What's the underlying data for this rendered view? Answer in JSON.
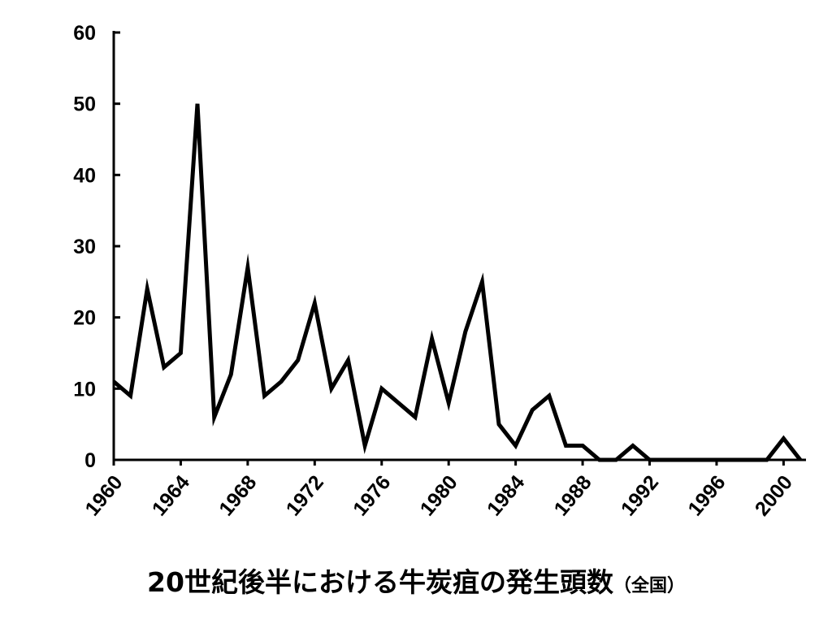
{
  "chart_data": {
    "type": "line",
    "title": "20世紀後半における牛炭疽の発生頭数",
    "subtitle": "（全国）",
    "xlabel": "",
    "ylabel": "",
    "ylim": [
      0,
      60
    ],
    "y_ticks": [
      0,
      10,
      20,
      30,
      40,
      50,
      60
    ],
    "x_ticks": [
      1960,
      1964,
      1968,
      1972,
      1976,
      1980,
      1984,
      1988,
      1992,
      1996,
      2000
    ],
    "xlim": [
      1960,
      2001
    ],
    "grid": false,
    "series": [
      {
        "color": "#000000",
        "x": [
          1960,
          1961,
          1962,
          1963,
          1964,
          1965,
          1966,
          1967,
          1968,
          1969,
          1970,
          1971,
          1972,
          1973,
          1974,
          1975,
          1976,
          1977,
          1978,
          1979,
          1980,
          1981,
          1982,
          1983,
          1984,
          1985,
          1986,
          1987,
          1988,
          1989,
          1990,
          1991,
          1992,
          1993,
          1994,
          1995,
          1996,
          1997,
          1998,
          1999,
          2000,
          2001
        ],
        "values": [
          11,
          9,
          24,
          13,
          15,
          50,
          6,
          12,
          27,
          9,
          11,
          14,
          22,
          10,
          14,
          2,
          10,
          8,
          6,
          17,
          8,
          18,
          25,
          5,
          2,
          7,
          9,
          2,
          2,
          0,
          0,
          2,
          0,
          0,
          0,
          0,
          0,
          0,
          0,
          0,
          3,
          0
        ]
      }
    ]
  }
}
